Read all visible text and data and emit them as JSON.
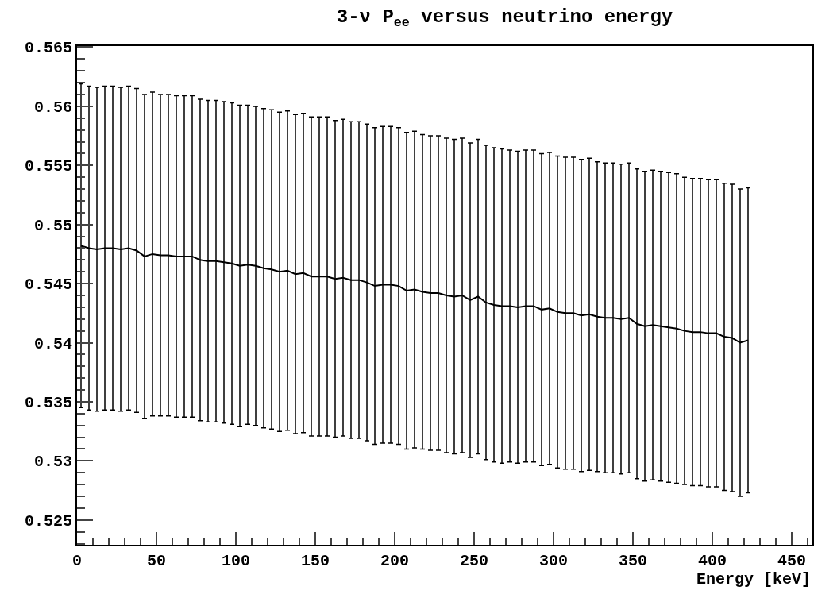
{
  "chart_data": {
    "type": "line",
    "title": "3-ν P$_{ee}$ versus neutrino energy",
    "xlabel": "Energy [keV]",
    "x": [
      2.5,
      7.5,
      12.5,
      17.5,
      22.5,
      27.5,
      32.5,
      37.5,
      42.5,
      47.5,
      52.5,
      57.5,
      62.5,
      67.5,
      72.5,
      77.5,
      82.5,
      87.5,
      92.5,
      97.5,
      102.5,
      107.5,
      112.5,
      117.5,
      122.5,
      127.5,
      132.5,
      137.5,
      142.5,
      147.5,
      152.5,
      157.5,
      162.5,
      167.5,
      172.5,
      177.5,
      182.5,
      187.5,
      192.5,
      197.5,
      202.5,
      207.5,
      212.5,
      217.5,
      222.5,
      227.5,
      232.5,
      237.5,
      242.5,
      247.5,
      252.5,
      257.5,
      262.5,
      267.5,
      272.5,
      277.5,
      282.5,
      287.5,
      292.5,
      297.5,
      302.5,
      307.5,
      312.5,
      317.5,
      322.5,
      327.5,
      332.5,
      337.5,
      342.5,
      347.5,
      352.5,
      357.5,
      362.5,
      367.5,
      372.5,
      377.5,
      382.5,
      387.5,
      392.5,
      397.5,
      402.5,
      407.5,
      412.5,
      417.5,
      422.5
    ],
    "series": [
      {
        "color": "#000000",
        "values": [
          0.5482,
          0.548,
          0.5479,
          0.548,
          0.548,
          0.5479,
          0.548,
          0.5478,
          0.5473,
          0.5475,
          0.5474,
          0.5474,
          0.5473,
          0.5473,
          0.5473,
          0.547,
          0.5469,
          0.5469,
          0.5468,
          0.5467,
          0.5465,
          0.5466,
          0.5465,
          0.5463,
          0.5462,
          0.546,
          0.5461,
          0.5458,
          0.5459,
          0.5456,
          0.5456,
          0.5456,
          0.5454,
          0.5455,
          0.5453,
          0.5453,
          0.5451,
          0.5448,
          0.5449,
          0.5449,
          0.5448,
          0.5444,
          0.5445,
          0.5443,
          0.5442,
          0.5442,
          0.544,
          0.5439,
          0.544,
          0.5436,
          0.5439,
          0.5434,
          0.5432,
          0.5431,
          0.5431,
          0.543,
          0.5431,
          0.5431,
          0.5428,
          0.5429,
          0.5426,
          0.5425,
          0.5425,
          0.5423,
          0.5424,
          0.5422,
          0.5421,
          0.5421,
          0.542,
          0.5421,
          0.5416,
          0.5414,
          0.5415,
          0.5414,
          0.5413,
          0.5412,
          0.541,
          0.5409,
          0.5409,
          0.5408,
          0.5408,
          0.5405,
          0.5404,
          0.54,
          0.5402
        ],
        "errors": [
          0.0137,
          0.0137,
          0.0137,
          0.0137,
          0.0137,
          0.0137,
          0.0137,
          0.0137,
          0.0137,
          0.0137,
          0.0136,
          0.0136,
          0.0136,
          0.0136,
          0.0136,
          0.0136,
          0.0136,
          0.0136,
          0.0136,
          0.0136,
          0.0136,
          0.0135,
          0.0135,
          0.0135,
          0.0135,
          0.0135,
          0.0135,
          0.0135,
          0.0135,
          0.0135,
          0.0135,
          0.0135,
          0.0134,
          0.0134,
          0.0134,
          0.0134,
          0.0134,
          0.0134,
          0.0134,
          0.0134,
          0.0134,
          0.0134,
          0.0134,
          0.0133,
          0.0133,
          0.0133,
          0.0133,
          0.0133,
          0.0133,
          0.0133,
          0.0133,
          0.0133,
          0.0133,
          0.0133,
          0.0132,
          0.0132,
          0.0132,
          0.0132,
          0.0132,
          0.0132,
          0.0132,
          0.0132,
          0.0132,
          0.0132,
          0.0132,
          0.0131,
          0.0131,
          0.0131,
          0.0131,
          0.0131,
          0.0131,
          0.0131,
          0.0131,
          0.0131,
          0.0131,
          0.0131,
          0.013,
          0.013,
          0.013,
          0.013,
          0.013,
          0.013,
          0.013,
          0.013,
          0.0129
        ]
      }
    ],
    "xlim": [
      0,
      463
    ],
    "xticks": [
      0,
      50,
      100,
      150,
      200,
      250,
      300,
      350,
      400,
      450
    ],
    "ylim": [
      0.5229,
      0.5651
    ],
    "yticks": [
      0.525,
      0.53,
      0.535,
      0.54,
      0.545,
      0.55,
      0.555,
      0.56,
      0.565
    ],
    "grid": false,
    "marker": "none",
    "line_style": "solid"
  }
}
